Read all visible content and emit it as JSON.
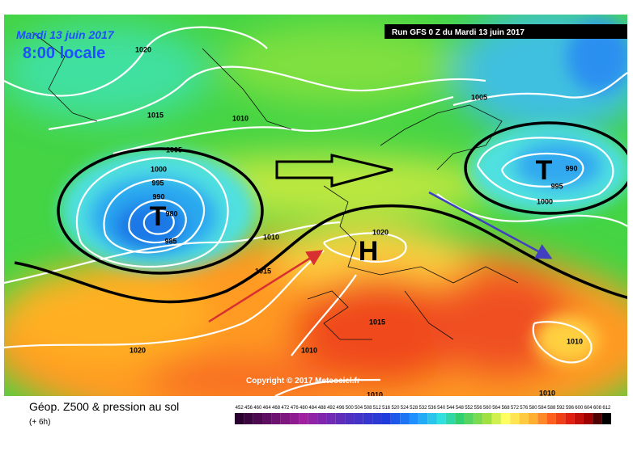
{
  "header": {
    "date": "Mardi 13 juin 2017",
    "time": "8:00 locale",
    "run": "Run GFS 0 Z du Mardi 13 juin 2017"
  },
  "map": {
    "labels": [
      "1020",
      "1015",
      "1010",
      "1005",
      "1000",
      "995",
      "990",
      "980",
      "985",
      "T",
      "1010",
      "1015",
      "1020",
      "H",
      "1015",
      "1010",
      "1020",
      "1005",
      "990",
      "995",
      "1000",
      "T",
      "1010",
      "1010",
      "1010"
    ],
    "copyright": "Copyright © 2017 Meteociel.fr"
  },
  "legend": {
    "title": "Géop. Z500 & pression au sol",
    "step": "(+ 6h)",
    "scale": [
      452,
      456,
      460,
      464,
      468,
      472,
      476,
      480,
      484,
      488,
      492,
      496,
      500,
      504,
      508,
      512,
      516,
      520,
      524,
      528,
      532,
      536,
      540,
      544,
      548,
      552,
      556,
      560,
      564,
      568,
      572,
      576,
      580,
      584,
      588,
      592,
      596,
      600,
      604,
      608,
      612
    ]
  }
}
